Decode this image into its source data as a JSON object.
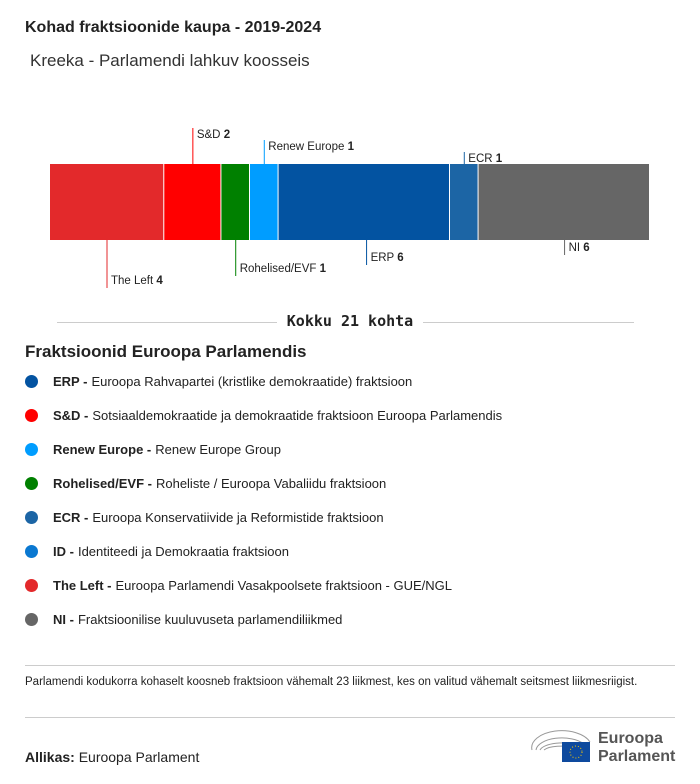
{
  "title": "Kohad fraktsioonide kaupa - 2019-2024",
  "subtitle": "Kreeka - Parlamendi lahkuv koosseis",
  "chart_data": {
    "type": "bar",
    "stacked": true,
    "total_label": "Kokku 21 kohta",
    "categories": [
      "The Left",
      "S&D",
      "Rohelised/EVF",
      "Renew Europe",
      "ERP",
      "ECR",
      "NI"
    ],
    "values": [
      4,
      2,
      1,
      1,
      6,
      1,
      6
    ],
    "colors": [
      "#e3292b",
      "#ff0000",
      "#008000",
      "#009dff",
      "#0353a1",
      "#1c65a5",
      "#666666"
    ],
    "label_side": [
      "below",
      "above",
      "below",
      "above",
      "below",
      "above",
      "below"
    ]
  },
  "legend": {
    "title": "Fraktsioonid Euroopa Parlamendis",
    "items": [
      {
        "abbr": "ERP -",
        "name": "Euroopa Rahvapartei (kristlike demokraatide) fraktsioon",
        "color": "#0353a1"
      },
      {
        "abbr": "S&D -",
        "name": "Sotsiaaldemokraatide ja demokraatide fraktsioon Euroopa Parlamendis",
        "color": "#ff0000"
      },
      {
        "abbr": "Renew Europe -",
        "name": "Renew Europe Group",
        "color": "#009dff"
      },
      {
        "abbr": "Rohelised/EVF -",
        "name": "Roheliste / Euroopa Vabaliidu fraktsioon",
        "color": "#008000"
      },
      {
        "abbr": "ECR -",
        "name": "Euroopa Konservatiivide ja Reformistide fraktsioon",
        "color": "#1c65a5"
      },
      {
        "abbr": "ID -",
        "name": "Identiteedi ja Demokraatia fraktsioon",
        "color": "#0a78d1"
      },
      {
        "abbr": "The Left -",
        "name": "Euroopa Parlamendi Vasakpoolsete fraktsioon - GUE/NGL",
        "color": "#e3292b"
      },
      {
        "abbr": "NI -",
        "name": "Fraktsioonilise kuuluvuseta parlamendiliikmed",
        "color": "#666666"
      }
    ]
  },
  "note": "Parlamendi kodukorra kohaselt koosneb fraktsioon vähemalt 23 liikmest, kes on valitud vähemalt seitsmest liikmesriigist.",
  "source": {
    "label": "Allikas:",
    "value": "Euroopa Parlament"
  },
  "logo": {
    "line1": "Euroopa",
    "line2": "Parlament"
  }
}
